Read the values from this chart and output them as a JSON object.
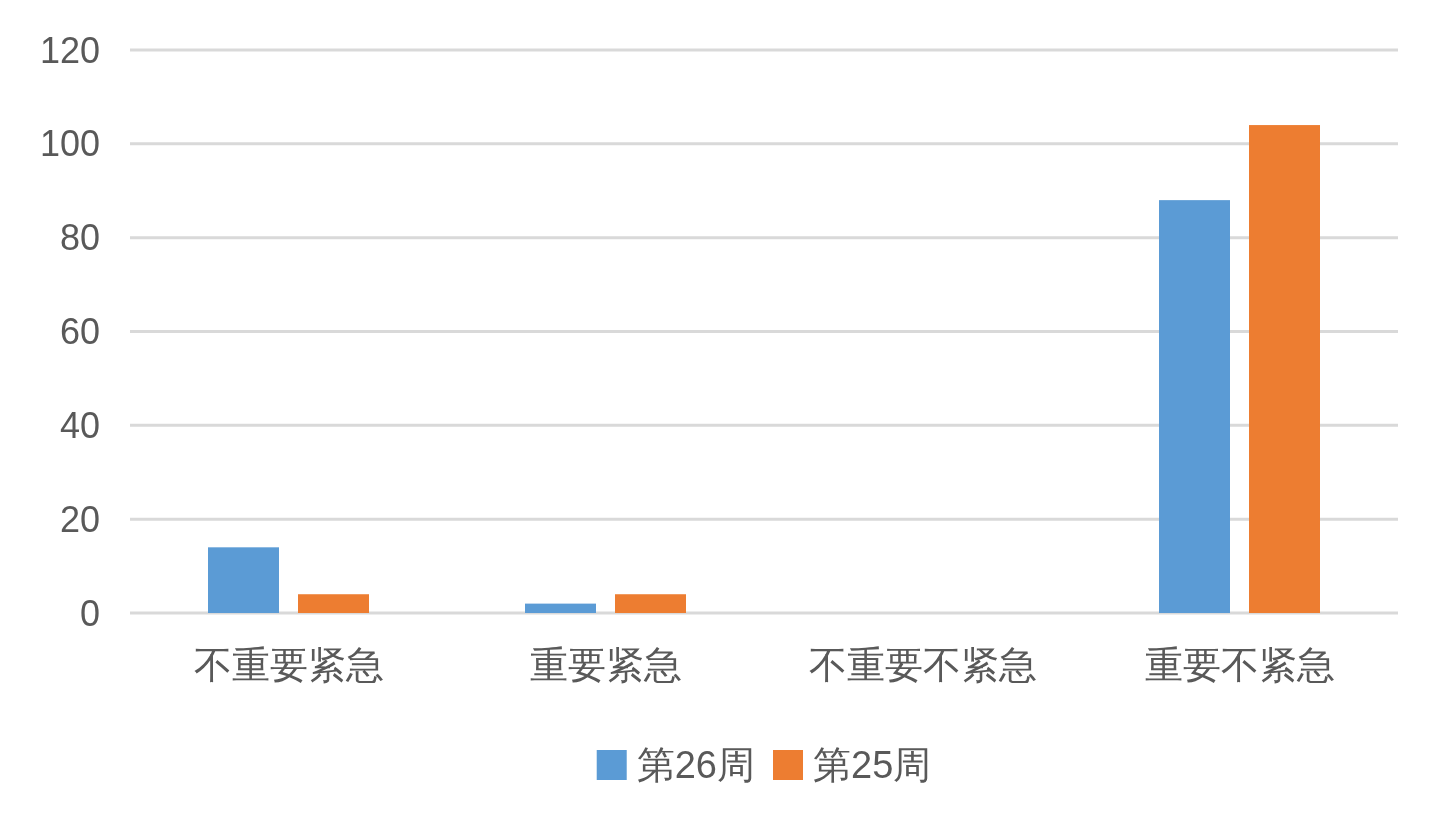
{
  "chart_data": {
    "type": "bar",
    "categories": [
      "不重要紧急",
      "重要紧急",
      "不重要不紧急",
      "重要不紧急"
    ],
    "series": [
      {
        "name": "第26周",
        "color": "#5b9bd5",
        "values": [
          14,
          2,
          0,
          88
        ]
      },
      {
        "name": "第25周",
        "color": "#ed7d31",
        "values": [
          4,
          4,
          0,
          104
        ]
      }
    ],
    "ylim": [
      0,
      120
    ],
    "yticks": [
      0,
      20,
      40,
      60,
      80,
      100,
      120
    ],
    "grid": "y",
    "legend": "bottom"
  }
}
